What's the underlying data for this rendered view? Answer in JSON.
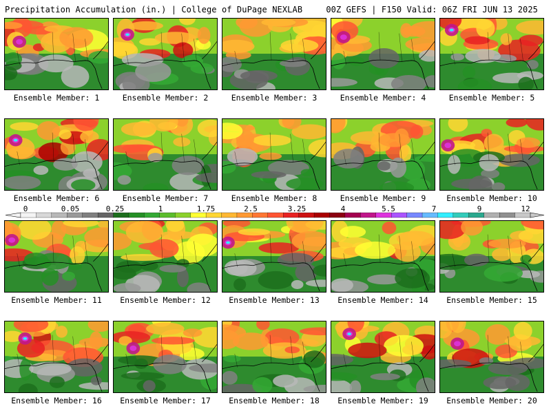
{
  "header": {
    "left": "Precipitation Accumulation (in.) | College of DuPage NEXLAB",
    "right": "00Z GEFS | F150 Valid: 06Z FRI JUN 13 2025"
  },
  "colorbar": {
    "tick_labels": [
      "0",
      "0.05",
      "0.25",
      "1",
      "1.75",
      "2.5",
      "3.25",
      "4",
      "5.5",
      "7",
      "9",
      "12"
    ],
    "colors": [
      "#f4f4f4",
      "#d8d8d8",
      "#b8b8b8",
      "#999999",
      "#808080",
      "#656565",
      "#1c6e1c",
      "#258f25",
      "#34a934",
      "#5cbd2c",
      "#8cd12c",
      "#ffff33",
      "#ffd633",
      "#ffb833",
      "#ff9933",
      "#ff7733",
      "#ff5533",
      "#e82222",
      "#cc1111",
      "#aa0000",
      "#8b0011",
      "#a40050",
      "#c0168a",
      "#dd33dd",
      "#aa55ff",
      "#7788ff",
      "#66bbff",
      "#33eeff",
      "#33ccbb",
      "#2aa88e",
      "#b0b0b0",
      "#909090",
      "#c8c8c8"
    ]
  },
  "members": [
    {
      "label": "Ensemble Member: 1",
      "intensity": 0.55
    },
    {
      "label": "Ensemble Member: 2",
      "intensity": 0.6
    },
    {
      "label": "Ensemble Member: 3",
      "intensity": 0.45
    },
    {
      "label": "Ensemble Member: 4",
      "intensity": 0.55
    },
    {
      "label": "Ensemble Member: 5",
      "intensity": 0.6
    },
    {
      "label": "Ensemble Member: 6",
      "intensity": 0.7
    },
    {
      "label": "Ensemble Member: 7",
      "intensity": 0.45
    },
    {
      "label": "Ensemble Member: 8",
      "intensity": 0.45
    },
    {
      "label": "Ensemble Member: 9",
      "intensity": 0.45
    },
    {
      "label": "Ensemble Member: 10",
      "intensity": 0.55
    },
    {
      "label": "Ensemble Member: 11",
      "intensity": 0.55
    },
    {
      "label": "Ensemble Member: 12",
      "intensity": 0.4
    },
    {
      "label": "Ensemble Member: 13",
      "intensity": 0.6
    },
    {
      "label": "Ensemble Member: 14",
      "intensity": 0.5
    },
    {
      "label": "Ensemble Member: 15",
      "intensity": 0.5
    },
    {
      "label": "Ensemble Member: 16",
      "intensity": 0.6
    },
    {
      "label": "Ensemble Member: 17",
      "intensity": 0.55
    },
    {
      "label": "Ensemble Member: 18",
      "intensity": 0.5
    },
    {
      "label": "Ensemble Member: 19",
      "intensity": 0.6
    },
    {
      "label": "Ensemble Member: 20",
      "intensity": 0.55
    }
  ]
}
